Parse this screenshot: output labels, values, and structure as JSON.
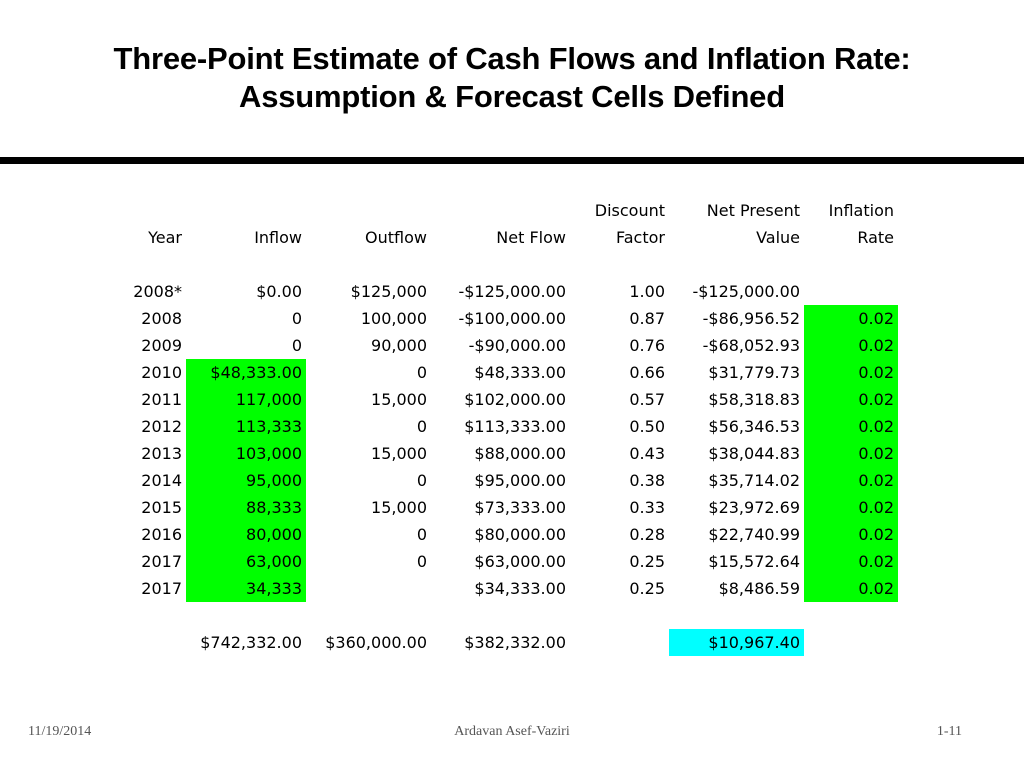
{
  "title": {
    "line1": "Three-Point Estimate of Cash Flows and Inflation Rate:",
    "line2": "Assumption & Forecast Cells Defined"
  },
  "table": {
    "headers_top": [
      "",
      "",
      "",
      "",
      "Discount",
      "Net Present",
      "Inflation"
    ],
    "headers": [
      "Year",
      "Inflow",
      "Outflow",
      "Net Flow",
      "Factor",
      "Value",
      "Rate"
    ],
    "rows": [
      {
        "year": "2008*",
        "inflow": "$0.00",
        "outflow": "$125,000",
        "net": "-$125,000.00",
        "factor": "1.00",
        "npv": "-$125,000.00",
        "rate": "",
        "inflow_green": false,
        "rate_green": false
      },
      {
        "year": "2008",
        "inflow": "0",
        "outflow": "100,000",
        "net": "-$100,000.00",
        "factor": "0.87",
        "npv": "-$86,956.52",
        "rate": "0.02",
        "inflow_green": false,
        "rate_green": true
      },
      {
        "year": "2009",
        "inflow": "0",
        "outflow": "90,000",
        "net": "-$90,000.00",
        "factor": "0.76",
        "npv": "-$68,052.93",
        "rate": "0.02",
        "inflow_green": false,
        "rate_green": true
      },
      {
        "year": "2010",
        "inflow": "$48,333.00",
        "outflow": "0",
        "net": "$48,333.00",
        "factor": "0.66",
        "npv": "$31,779.73",
        "rate": "0.02",
        "inflow_green": true,
        "rate_green": true
      },
      {
        "year": "2011",
        "inflow": "117,000",
        "outflow": "15,000",
        "net": "$102,000.00",
        "factor": "0.57",
        "npv": "$58,318.83",
        "rate": "0.02",
        "inflow_green": true,
        "rate_green": true
      },
      {
        "year": "2012",
        "inflow": "113,333",
        "outflow": "0",
        "net": "$113,333.00",
        "factor": "0.50",
        "npv": "$56,346.53",
        "rate": "0.02",
        "inflow_green": true,
        "rate_green": true
      },
      {
        "year": "2013",
        "inflow": "103,000",
        "outflow": "15,000",
        "net": "$88,000.00",
        "factor": "0.43",
        "npv": "$38,044.83",
        "rate": "0.02",
        "inflow_green": true,
        "rate_green": true
      },
      {
        "year": "2014",
        "inflow": "95,000",
        "outflow": "0",
        "net": "$95,000.00",
        "factor": "0.38",
        "npv": "$35,714.02",
        "rate": "0.02",
        "inflow_green": true,
        "rate_green": true
      },
      {
        "year": "2015",
        "inflow": "88,333",
        "outflow": "15,000",
        "net": "$73,333.00",
        "factor": "0.33",
        "npv": "$23,972.69",
        "rate": "0.02",
        "inflow_green": true,
        "rate_green": true
      },
      {
        "year": "2016",
        "inflow": "80,000",
        "outflow": "0",
        "net": "$80,000.00",
        "factor": "0.28",
        "npv": "$22,740.99",
        "rate": "0.02",
        "inflow_green": true,
        "rate_green": true
      },
      {
        "year": "2017",
        "inflow": "63,000",
        "outflow": "0",
        "net": "$63,000.00",
        "factor": "0.25",
        "npv": "$15,572.64",
        "rate": "0.02",
        "inflow_green": true,
        "rate_green": true
      },
      {
        "year": "2017",
        "inflow": "34,333",
        "outflow": "",
        "net": "$34,333.00",
        "factor": "0.25",
        "npv": "$8,486.59",
        "rate": "0.02",
        "inflow_green": true,
        "rate_green": true
      }
    ],
    "totals": {
      "inflow": "$742,332.00",
      "outflow": "$360,000.00",
      "net": "$382,332.00",
      "npv": "$10,967.40"
    }
  },
  "colors": {
    "assumption": "#00ff00",
    "forecast": "#00ffff"
  },
  "footer": {
    "date": "11/19/2014",
    "author": "Ardavan Asef-Vaziri",
    "page": "1-11"
  }
}
